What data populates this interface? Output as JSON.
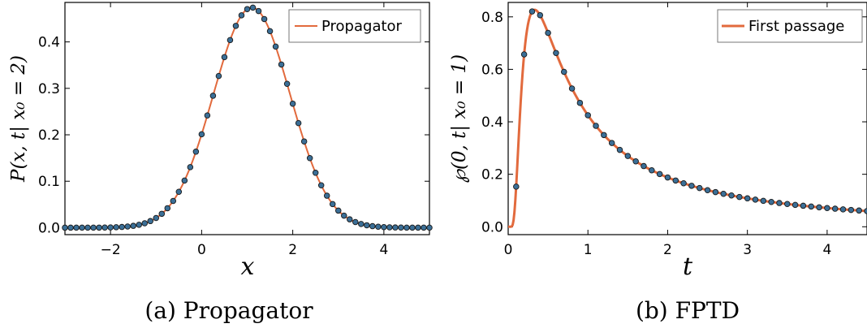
{
  "colors": {
    "line": "#e26a3d",
    "marker": "#3b6f97",
    "frame": "#000000"
  },
  "chart_data": [
    {
      "type": "line",
      "panel_caption": "(a) Propagator",
      "xlabel": "x",
      "ylabel": "P(x, t| x₀ = 2)",
      "xlim": [
        -3,
        5
      ],
      "ylim": [
        -0.015,
        0.485
      ],
      "xticks": [
        -2,
        0,
        2,
        4
      ],
      "xtick_labels": [
        "−2",
        "0",
        "2",
        "4"
      ],
      "yticks": [
        0.0,
        0.1,
        0.2,
        0.3,
        0.4
      ],
      "ytick_labels": [
        "0.0",
        "0.1",
        "0.2",
        "0.3",
        "0.4"
      ],
      "grid": false,
      "legend": {
        "position": "top-right",
        "entries": [
          "Propagator"
        ]
      },
      "series": [
        {
          "name": "Propagator",
          "kind": "line",
          "mu": 1.1,
          "sigma": 0.84,
          "peak": 0.474
        }
      ],
      "markers": {
        "x_start": -3.0,
        "x_end": 5.0,
        "x_step": 0.125
      }
    },
    {
      "type": "line",
      "panel_caption": "(b) FPTD",
      "xlabel": "t",
      "ylabel": "℘(0, t| x₀ = 1)",
      "xlim": [
        0,
        4.5
      ],
      "ylim": [
        -0.03,
        0.855
      ],
      "xticks": [
        0,
        1,
        2,
        3,
        4
      ],
      "xtick_labels": [
        "0",
        "1",
        "2",
        "3",
        "4"
      ],
      "yticks": [
        0.0,
        0.2,
        0.4,
        0.6,
        0.8
      ],
      "ytick_labels": [
        "0.0",
        "0.2",
        "0.4",
        "0.6",
        "0.8"
      ],
      "grid": false,
      "legend": {
        "position": "top-right",
        "entries": [
          "First passage"
        ]
      },
      "series": [
        {
          "name": "First passage",
          "kind": "line",
          "D": 0.5,
          "x0": 1.0,
          "drift": 0.23,
          "peak": 0.827
        }
      ],
      "markers": {
        "x_start": 0.1,
        "x_end": 4.5,
        "x_step": 0.1
      }
    }
  ]
}
